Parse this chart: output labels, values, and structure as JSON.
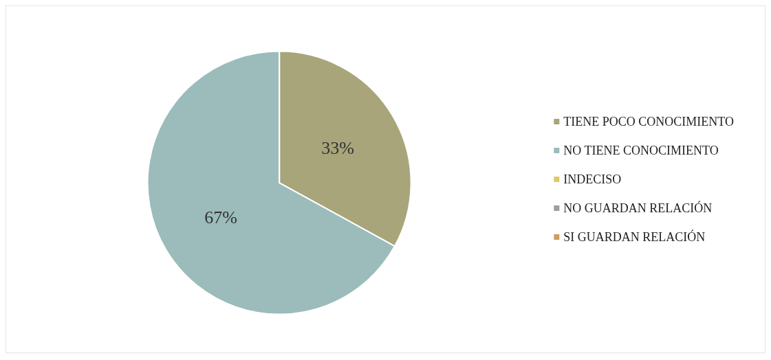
{
  "chart_data": {
    "type": "pie",
    "categories": [
      "TIENE POCO CONOCIMIENTO",
      "NO TIENE CONOCIMIENTO",
      "INDECISO",
      "NO GUARDAN RELACIÓN",
      "SI GUARDAN RELACIÓN"
    ],
    "values": [
      33,
      67,
      0,
      0,
      0
    ],
    "colors": [
      "#a8a57b",
      "#9bbcbb",
      "#d9cc6a",
      "#9a9e9c",
      "#cc9d5a"
    ],
    "value_labels": [
      "33%",
      "67%",
      null,
      null,
      null
    ],
    "legend": "right"
  }
}
